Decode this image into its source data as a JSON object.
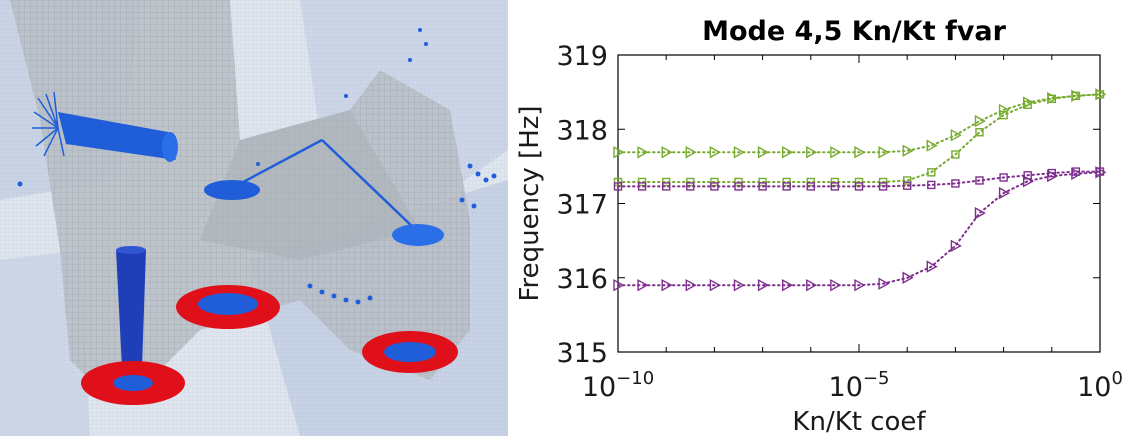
{
  "colors": {
    "green": "#77ac30",
    "purple": "#7e2f8e",
    "mesh_grey": "#b9bec4",
    "spider_blue": "#1f5ed8",
    "pad_red": "#e0101a"
  },
  "fem_view": {
    "icons": [
      "fem-mesh-icon",
      "bolt-spider-icon",
      "washer-pad-icon"
    ]
  },
  "chart_data": {
    "type": "line",
    "title": "Mode 4,5 Kn/Kt fvar",
    "xlabel": "Kn/Kt coef",
    "ylabel": "Frequency [Hz]",
    "xscale": "log",
    "xlim": [
      1e-10,
      1
    ],
    "ylim": [
      315,
      319
    ],
    "x_ticks": [
      {
        "value": 1e-10,
        "base": "10",
        "exp": "−10"
      },
      {
        "value": 1e-05,
        "base": "10",
        "exp": "−5"
      },
      {
        "value": 1,
        "base": "10",
        "exp": "0"
      }
    ],
    "y_ticks": [
      315,
      316,
      317,
      318,
      319
    ],
    "grid": false,
    "x": [
      1e-10,
      3.16e-10,
      1e-09,
      3.16e-09,
      1e-08,
      3.16e-08,
      1e-07,
      3.16e-07,
      1e-06,
      3.16e-06,
      1e-05,
      3.16e-05,
      0.0001,
      0.000316,
      0.001,
      0.00316,
      0.01,
      0.0316,
      0.1,
      0.316,
      1
    ],
    "series": [
      {
        "color": "#77ac30",
        "marker": "triangle-right",
        "values": [
          317.69,
          317.69,
          317.69,
          317.69,
          317.69,
          317.69,
          317.69,
          317.69,
          317.69,
          317.69,
          317.69,
          317.69,
          317.71,
          317.78,
          317.92,
          318.11,
          318.26,
          318.36,
          318.42,
          318.45,
          318.47
        ]
      },
      {
        "color": "#77ac30",
        "marker": "square",
        "values": [
          317.29,
          317.29,
          317.29,
          317.29,
          317.29,
          317.29,
          317.29,
          317.29,
          317.29,
          317.29,
          317.29,
          317.29,
          317.31,
          317.42,
          317.66,
          317.96,
          318.19,
          318.33,
          318.41,
          318.45,
          318.47
        ]
      },
      {
        "color": "#7e2f8e",
        "marker": "square",
        "values": [
          317.23,
          317.23,
          317.23,
          317.23,
          317.23,
          317.23,
          317.23,
          317.23,
          317.23,
          317.23,
          317.23,
          317.23,
          317.24,
          317.25,
          317.27,
          317.31,
          317.35,
          317.38,
          317.41,
          317.43,
          317.43
        ]
      },
      {
        "color": "#7e2f8e",
        "marker": "triangle-right",
        "values": [
          315.9,
          315.9,
          315.9,
          315.9,
          315.9,
          315.9,
          315.9,
          315.9,
          315.9,
          315.9,
          315.9,
          315.92,
          316.0,
          316.15,
          316.43,
          316.87,
          317.14,
          317.3,
          317.37,
          317.4,
          317.42
        ]
      }
    ]
  }
}
